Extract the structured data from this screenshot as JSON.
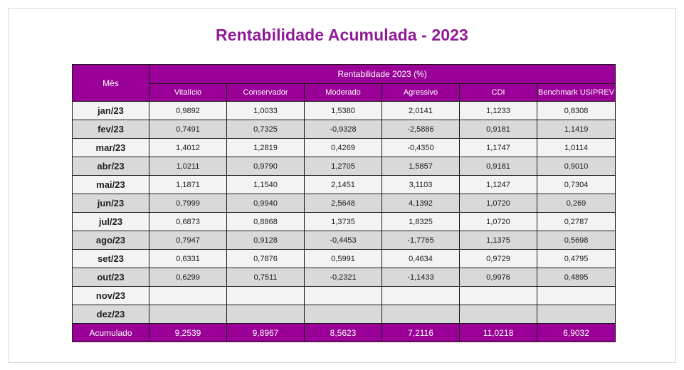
{
  "title": "Rentabilidade Acumulada - 2023",
  "table": {
    "month_header": "Mês",
    "group_header": "Rentabilidade 2023 (%)",
    "columns": [
      "Vitalício",
      "Conservador",
      "Moderado",
      "Agressivo",
      "CDI",
      "Benchmark USIPREV"
    ],
    "rows": [
      {
        "month": "jan/23",
        "values": [
          "0,9892",
          "1,0033",
          "1,5380",
          "2,0141",
          "1,1233",
          "0,8308"
        ]
      },
      {
        "month": "fev/23",
        "values": [
          "0,7491",
          "0,7325",
          "-0,9328",
          "-2,5886",
          "0,9181",
          "1,1419"
        ]
      },
      {
        "month": "mar/23",
        "values": [
          "1,4012",
          "1,2819",
          "0,4269",
          "-0,4350",
          "1,1747",
          "1,0114"
        ]
      },
      {
        "month": "abr/23",
        "values": [
          "1,0211",
          "0,9790",
          "1,2705",
          "1,5857",
          "0,9181",
          "0,9010"
        ]
      },
      {
        "month": "mai/23",
        "values": [
          "1,1871",
          "1,1540",
          "2,1451",
          "3,1103",
          "1,1247",
          "0,7304"
        ]
      },
      {
        "month": "jun/23",
        "values": [
          "0,7999",
          "0,9940",
          "2,5648",
          "4,1392",
          "1,0720",
          "0,269"
        ]
      },
      {
        "month": "jul/23",
        "values": [
          "0,6873",
          "0,8868",
          "1,3735",
          "1,8325",
          "1,0720",
          "0,2787"
        ]
      },
      {
        "month": "ago/23",
        "values": [
          "0,7947",
          "0,9128",
          "-0,4453",
          "-1,7765",
          "1,1375",
          "0,5698"
        ]
      },
      {
        "month": "set/23",
        "values": [
          "0,6331",
          "0,7876",
          "0,5991",
          "0,4634",
          "0,9729",
          "0,4795"
        ]
      },
      {
        "month": "out/23",
        "values": [
          "0,6299",
          "0,7511",
          "-0,2321",
          "-1,1433",
          "0,9976",
          "0,4895"
        ]
      },
      {
        "month": "nov/23",
        "values": [
          "",
          "",
          "",
          "",
          "",
          ""
        ]
      },
      {
        "month": "dez/23",
        "values": [
          "",
          "",
          "",
          "",
          "",
          ""
        ]
      }
    ],
    "total": {
      "label": "Acumulado",
      "values": [
        "9,2539",
        "9,8967",
        "8,5623",
        "7,2116",
        "11,0218",
        "6,9032"
      ]
    }
  },
  "colors": {
    "accent": "#9a0097",
    "title": "#8e1b96",
    "row_light": "#f3f3f3",
    "row_dark": "#d9d9d9"
  }
}
